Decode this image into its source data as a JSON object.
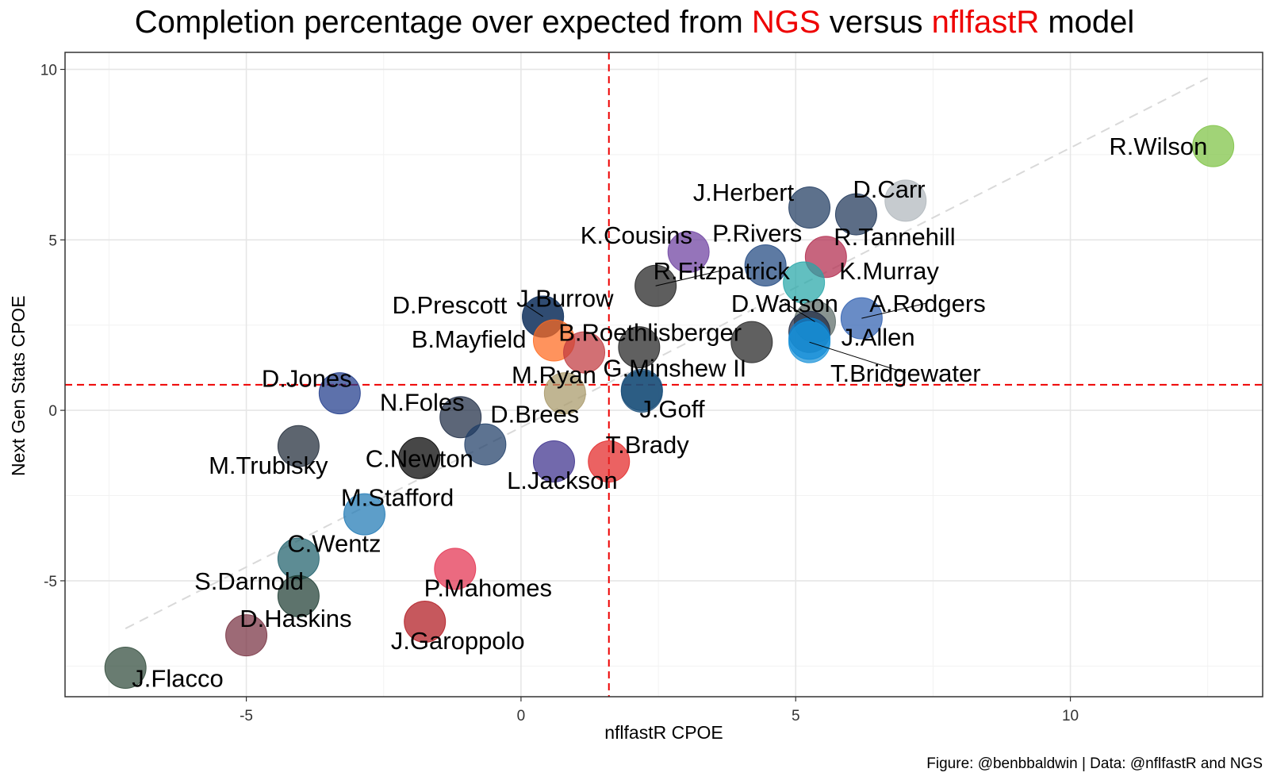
{
  "title": {
    "prefix": "Completion percentage over expected from ",
    "ngs": "NGS",
    "middle": " versus ",
    "model": "nflfastR",
    "suffix": " model"
  },
  "caption": "Figure: @benbbaldwin | Data: @nflfastR and NGS",
  "chart_data": {
    "type": "scatter",
    "title": "Completion percentage over expected from NGS versus nflfastR model",
    "xlabel": "nflfastR CPOE",
    "ylabel": "Next Gen Stats CPOE",
    "xlim": [
      -8.3,
      13.5
    ],
    "ylim": [
      -8.4,
      10.5
    ],
    "xticks": [
      -5,
      0,
      5,
      10
    ],
    "yticks": [
      -5,
      0,
      5,
      10
    ],
    "xtick_labels": [
      "-5",
      "0",
      "5",
      "10"
    ],
    "ytick_labels": [
      "-5",
      "0",
      "5",
      "10"
    ],
    "grid": true,
    "reference_lines": {
      "vline_x": 1.6,
      "hline_y": 0.75,
      "color": "#ee0000",
      "style": "dashed"
    },
    "fit_line": {
      "x": [
        -7.2,
        12.5
      ],
      "y": [
        -6.4,
        9.75
      ],
      "color": "#d9d9d9",
      "style": "dashed"
    },
    "points": [
      {
        "name": "R.Wilson",
        "x": 12.6,
        "y": 7.75,
        "color": "#7dc243",
        "lx": 11.6,
        "ly": 7.75
      },
      {
        "name": "J.Herbert",
        "x": 5.25,
        "y": 5.95,
        "color": "#1f3a5f",
        "lx": 4.05,
        "ly": 6.4
      },
      {
        "name": "D.Carr",
        "x": 6.1,
        "y": 5.75,
        "color": "#1d3557",
        "lx": 6.7,
        "ly": 6.5
      },
      {
        "name": "",
        "x": 7.0,
        "y": 6.15,
        "color": "#b0b7bc",
        "lx": 7.0,
        "ly": 6.15
      },
      {
        "name": "K.Cousins",
        "x": 3.05,
        "y": 4.65,
        "color": "#6c3fa0",
        "lx": 2.1,
        "ly": 5.15
      },
      {
        "name": "P.Rivers",
        "x": 4.45,
        "y": 4.25,
        "color": "#1f4780",
        "lx": 4.3,
        "ly": 5.2
      },
      {
        "name": "R.Tannehill",
        "x": 5.55,
        "y": 4.5,
        "color": "#b12a4c",
        "lx": 6.8,
        "ly": 5.1
      },
      {
        "name": "K.Murray",
        "x": 5.15,
        "y": 3.75,
        "color": "#26a6a8",
        "lx": 6.7,
        "ly": 4.1
      },
      {
        "name": "R.Fitzpatrick",
        "x": 2.45,
        "y": 3.65,
        "color": "#202020",
        "lx": 3.65,
        "ly": 4.1
      },
      {
        "name": "J.Burrow",
        "x": 0.4,
        "y": 2.75,
        "color": "#1e3d66",
        "lx": 0.8,
        "ly": 3.3
      },
      {
        "name": "D.Prescott",
        "x": 0.4,
        "y": 2.75,
        "color": "#1e3d66",
        "lx": -1.3,
        "ly": 3.1
      },
      {
        "name": "D.Watson",
        "x": 5.35,
        "y": 2.6,
        "color": "#5c6b66",
        "lx": 4.8,
        "ly": 3.15
      },
      {
        "name": "A.Rodgers",
        "x": 6.2,
        "y": 2.7,
        "color": "#2f5fb0",
        "lx": 7.4,
        "ly": 3.15
      },
      {
        "name": "B.Mayfield",
        "x": 0.6,
        "y": 2.05,
        "color": "#ff6a1f",
        "lx": -0.95,
        "ly": 2.1
      },
      {
        "name": "B.Roethlisberger",
        "x": 1.15,
        "y": 1.7,
        "color": "#c0393f",
        "lx": 2.35,
        "ly": 2.3
      },
      {
        "name": "",
        "x": 2.15,
        "y": 1.85,
        "color": "#222222",
        "lx": 2.15,
        "ly": 1.85
      },
      {
        "name": "",
        "x": 4.2,
        "y": 2.0,
        "color": "#222222",
        "lx": 4.2,
        "ly": 2.0
      },
      {
        "name": "",
        "x": 5.25,
        "y": 2.3,
        "color": "#1f2a44",
        "lx": 5.25,
        "ly": 2.3
      },
      {
        "name": "J.Allen",
        "x": 5.25,
        "y": 2.1,
        "color": "#0a7fd0",
        "lx": 6.5,
        "ly": 2.15
      },
      {
        "name": "T.Bridgewater",
        "x": 5.25,
        "y": 2.0,
        "color": "#1791d8",
        "lx": 7.0,
        "ly": 1.1
      },
      {
        "name": "G.Minshew II",
        "x": 2.2,
        "y": 0.6,
        "color": "#1b4f7a",
        "lx": 2.8,
        "ly": 1.25
      },
      {
        "name": "M.Ryan",
        "x": 0.8,
        "y": 0.5,
        "color": "#a89868",
        "lx": 0.6,
        "ly": 1.05
      },
      {
        "name": "J.Goff",
        "x": 2.2,
        "y": 0.55,
        "color": "#1b4f7a",
        "lx": 2.75,
        "ly": 0.05
      },
      {
        "name": "D.Jones",
        "x": -3.3,
        "y": 0.5,
        "color": "#1e3a8a",
        "lx": -3.9,
        "ly": 0.95
      },
      {
        "name": "N.Foles",
        "x": -1.1,
        "y": -0.2,
        "color": "#1d2b44",
        "lx": -1.8,
        "ly": 0.25
      },
      {
        "name": "D.Brees",
        "x": -0.65,
        "y": -1.0,
        "color": "#1e3d66",
        "lx": 0.25,
        "ly": -0.1
      },
      {
        "name": "M.Trubisky",
        "x": -4.05,
        "y": -1.05,
        "color": "#1f2937",
        "lx": -4.6,
        "ly": -1.6
      },
      {
        "name": "C.Newton",
        "x": -1.85,
        "y": -1.4,
        "color": "#000000",
        "lx": -1.85,
        "ly": -1.4
      },
      {
        "name": "L.Jackson",
        "x": 0.6,
        "y": -1.5,
        "color": "#3b2f8c",
        "lx": 0.75,
        "ly": -2.05
      },
      {
        "name": "T.Brady",
        "x": 1.6,
        "y": -1.5,
        "color": "#e32626",
        "lx": 2.3,
        "ly": -1.0
      },
      {
        "name": "M.Stafford",
        "x": -2.85,
        "y": -3.05,
        "color": "#1f78b4",
        "lx": -2.25,
        "ly": -2.55
      },
      {
        "name": "C.Wentz",
        "x": -4.05,
        "y": -4.35,
        "color": "#1f5f6b",
        "lx": -3.4,
        "ly": -3.9
      },
      {
        "name": "S.Darnold",
        "x": -4.05,
        "y": -5.45,
        "color": "#1e3d33",
        "lx": -4.95,
        "ly": -5.0
      },
      {
        "name": "P.Mahomes",
        "x": -1.2,
        "y": -4.65,
        "color": "#e3314f",
        "lx": -0.6,
        "ly": -5.2
      },
      {
        "name": "J.Garoppolo",
        "x": -1.75,
        "y": -6.2,
        "color": "#b0181e",
        "lx": -1.15,
        "ly": -6.75
      },
      {
        "name": "D.Haskins",
        "x": -5.0,
        "y": -6.6,
        "color": "#773141",
        "lx": -4.1,
        "ly": -6.1
      },
      {
        "name": "J.Flacco",
        "x": -7.2,
        "y": -7.55,
        "color": "#2f4a3a",
        "lx": -6.25,
        "ly": -7.85
      }
    ],
    "leaders": [
      {
        "from": "D.Prescott",
        "to": "J.Burrow"
      },
      {
        "from": "R.Fitzpatrick",
        "to": "R.Fitzpatrick"
      },
      {
        "from": "D.Watson",
        "to": "D.Watson"
      },
      {
        "from": "A.Rodgers",
        "to": "A.Rodgers"
      },
      {
        "from": "T.Bridgewater",
        "to": "T.Bridgewater"
      }
    ]
  }
}
